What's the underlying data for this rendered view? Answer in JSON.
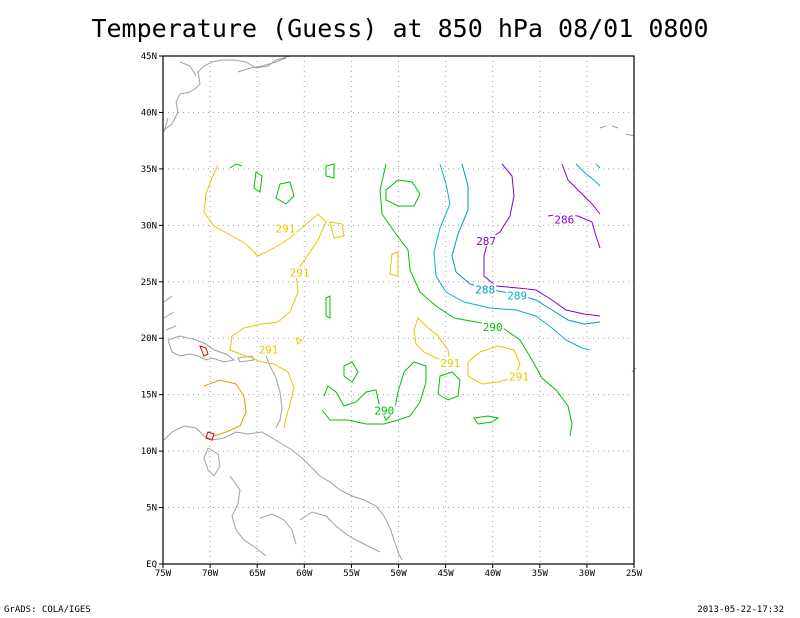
{
  "title": "Temperature (Guess) at 850 hPa 08/01 0800",
  "footer": {
    "left": "GrADS: COLA/IGES",
    "right": "2013-05-22-17:32"
  },
  "axes": {
    "lon_labels": [
      "75W",
      "70W",
      "65W",
      "60W",
      "55W",
      "50W",
      "45W",
      "40W",
      "35W",
      "30W",
      "25W"
    ],
    "lat_labels": [
      "EQ",
      "5N",
      "10N",
      "15N",
      "20N",
      "25N",
      "30N",
      "35N",
      "40N",
      "45N"
    ]
  },
  "colors": {
    "coast": "#a0a0a0",
    "grid": "#a0a0a0",
    "c291": "#e6c800",
    "c290": "#00c000",
    "c289": "#00b4c8",
    "c288": "#0096c8",
    "c287": "#8c00c8",
    "c286": "#8c00c8",
    "c292": "#e69600",
    "c293": "#e00000"
  },
  "contour_labels": [
    {
      "text": "291",
      "lon": -62,
      "lat": 29.7,
      "color": "c291"
    },
    {
      "text": "291",
      "lon": -60.5,
      "lat": 25.8,
      "color": "c291"
    },
    {
      "text": "291",
      "lon": -63.8,
      "lat": 19.0,
      "color": "c291"
    },
    {
      "text": "291",
      "lon": -44.5,
      "lat": 17.8,
      "color": "c291"
    },
    {
      "text": "291",
      "lon": -37.2,
      "lat": 16.6,
      "color": "c291"
    },
    {
      "text": "290",
      "lon": -51.5,
      "lat": 13.6,
      "color": "c290"
    },
    {
      "text": "290",
      "lon": -40.0,
      "lat": 21.0,
      "color": "c290"
    },
    {
      "text": "289",
      "lon": -37.4,
      "lat": 23.8,
      "color": "c289"
    },
    {
      "text": "288",
      "lon": -40.8,
      "lat": 24.3,
      "color": "c288"
    },
    {
      "text": "287",
      "lon": -40.7,
      "lat": 28.6,
      "color": "c287"
    },
    {
      "text": "286",
      "lon": -32.4,
      "lat": 30.5,
      "color": "c286"
    }
  ]
}
